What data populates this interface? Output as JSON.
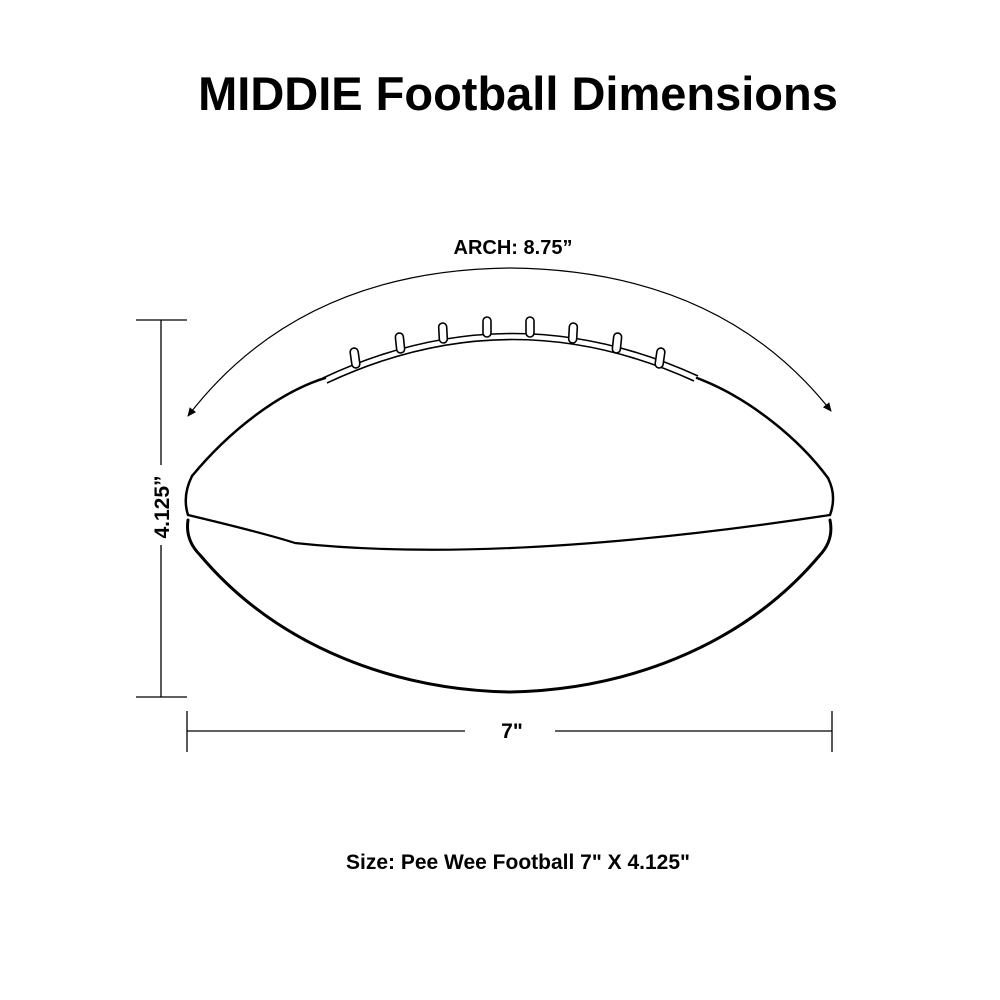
{
  "title": "MIDDIE Football Dimensions",
  "labels": {
    "arch": "ARCH: 8.75”",
    "height": "4.125”",
    "width": "7\""
  },
  "caption": "Size: Pee Wee Football 7\" X 4.125\"",
  "colors": {
    "line": "#000000",
    "background": "#ffffff"
  }
}
